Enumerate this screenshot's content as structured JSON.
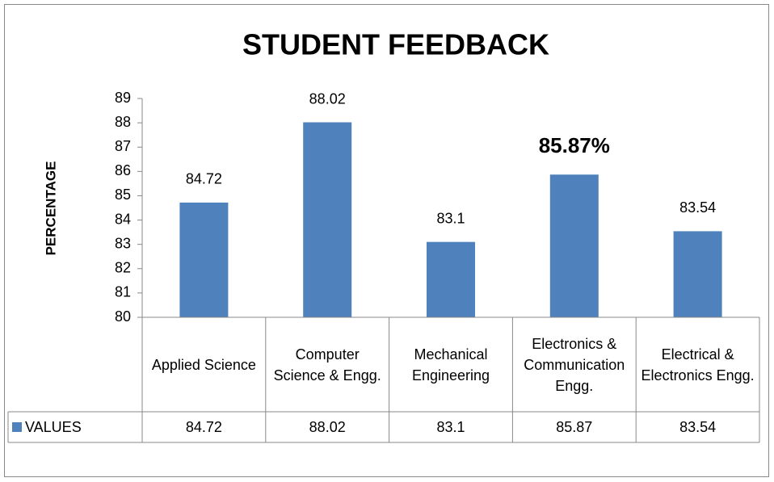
{
  "chart_data": {
    "type": "bar",
    "title": "STUDENT FEEDBACK",
    "y_label": "PERCENTAGE",
    "categories": [
      "Applied Science",
      "Computer Science & Engg.",
      "Mechanical Engineering",
      "Electronics & Communication Engg.",
      "Electrical & Electronics Engg."
    ],
    "series": [
      {
        "name": "VALUES",
        "color": "#4f81bd",
        "values": [
          84.72,
          88.02,
          83.1,
          85.87,
          83.54
        ],
        "value_labels": [
          "84.72",
          "88.02",
          "83.1",
          "85.87%",
          "83.54"
        ],
        "value_label_colors": [
          "#000000",
          "#000000",
          "#000000",
          "#ff0000",
          "#000000"
        ]
      }
    ],
    "ylim": [
      80,
      89
    ],
    "yticks": [
      80,
      81,
      82,
      83,
      84,
      85,
      86,
      87,
      88,
      89
    ],
    "data_table": true
  }
}
